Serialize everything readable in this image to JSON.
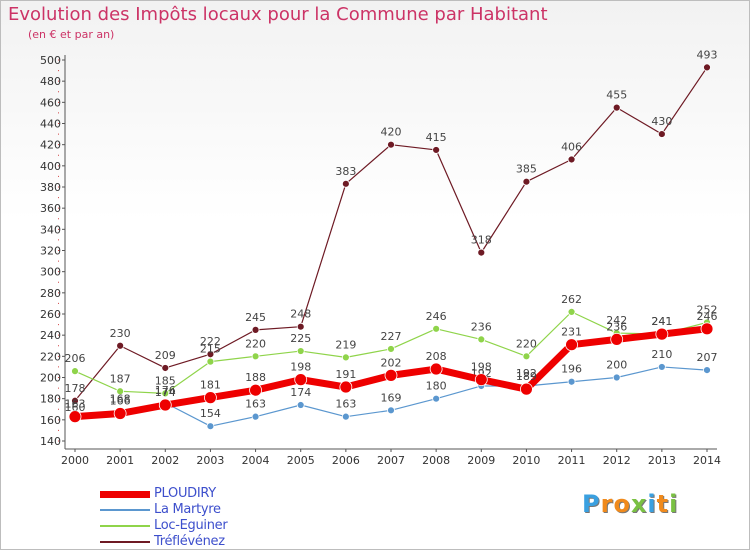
{
  "header": {
    "title": "Evolution des Impôts locaux pour la Commune par Habitant",
    "subtitle": "(en € et par an)"
  },
  "logo": {
    "text": "Proxiti"
  },
  "chart_data": {
    "type": "line",
    "title": "Evolution des Impôts locaux pour la Commune par Habitant",
    "subtitle": "(en € et par an)",
    "xlabel": "",
    "ylabel": "",
    "ylim": [
      140,
      500
    ],
    "ytick_step": 20,
    "grid": false,
    "legend_position": "bottom-left",
    "categories": [
      "2000",
      "2001",
      "2002",
      "2003",
      "2004",
      "2005",
      "2006",
      "2007",
      "2008",
      "2009",
      "2010",
      "2011",
      "2012",
      "2013",
      "2014"
    ],
    "series": [
      {
        "name": "Tréflévénez",
        "color": "#6e1a24",
        "width": 1.2,
        "marker": 3.5,
        "values": [
          178,
          230,
          209,
          222,
          245,
          248,
          383,
          420,
          415,
          318,
          385,
          406,
          455,
          430,
          493
        ],
        "labels": [
          "178",
          "230",
          "209",
          "222",
          "245",
          "248",
          "383",
          "420",
          "415",
          "318",
          "385",
          "406",
          "455",
          "430",
          "493"
        ]
      },
      {
        "name": "Loc-Eguiner",
        "color": "#8fd44a",
        "width": 1.2,
        "marker": 3.5,
        "values": [
          206,
          187,
          185,
          215,
          220,
          225,
          219,
          227,
          246,
          236,
          220,
          262,
          242,
          241,
          252
        ],
        "labels": [
          "206",
          "187",
          "185",
          "215",
          "220",
          "225",
          "219",
          "227",
          "246",
          "236",
          "220",
          "262",
          "242",
          "241",
          "252"
        ]
      },
      {
        "name": "La Martyre",
        "color": "#5b97cf",
        "width": 1.2,
        "marker": 3.5,
        "values": [
          160,
          168,
          176,
          154,
          163,
          174,
          163,
          169,
          180,
          192,
          192,
          196,
          200,
          210,
          207
        ],
        "labels": [
          "160",
          "168",
          "176",
          "154",
          "163",
          "174",
          "163",
          "169",
          "180",
          "192",
          "192",
          "196",
          "200",
          "210",
          "207"
        ]
      },
      {
        "name": "PLOUDIRY",
        "color": "#ee0000",
        "width": 7,
        "marker": 6,
        "values": [
          163,
          166,
          174,
          181,
          188,
          198,
          191,
          202,
          208,
          198,
          189,
          231,
          236,
          241,
          246
        ],
        "labels": [
          "163",
          "166",
          "174",
          "181",
          "188",
          "198",
          "191",
          "202",
          "208",
          "198",
          "189",
          "231",
          "236",
          "241",
          "246"
        ]
      }
    ],
    "legend_order": [
      "PLOUDIRY",
      "La Martyre",
      "Loc-Eguiner",
      "Tréflévénez"
    ]
  }
}
